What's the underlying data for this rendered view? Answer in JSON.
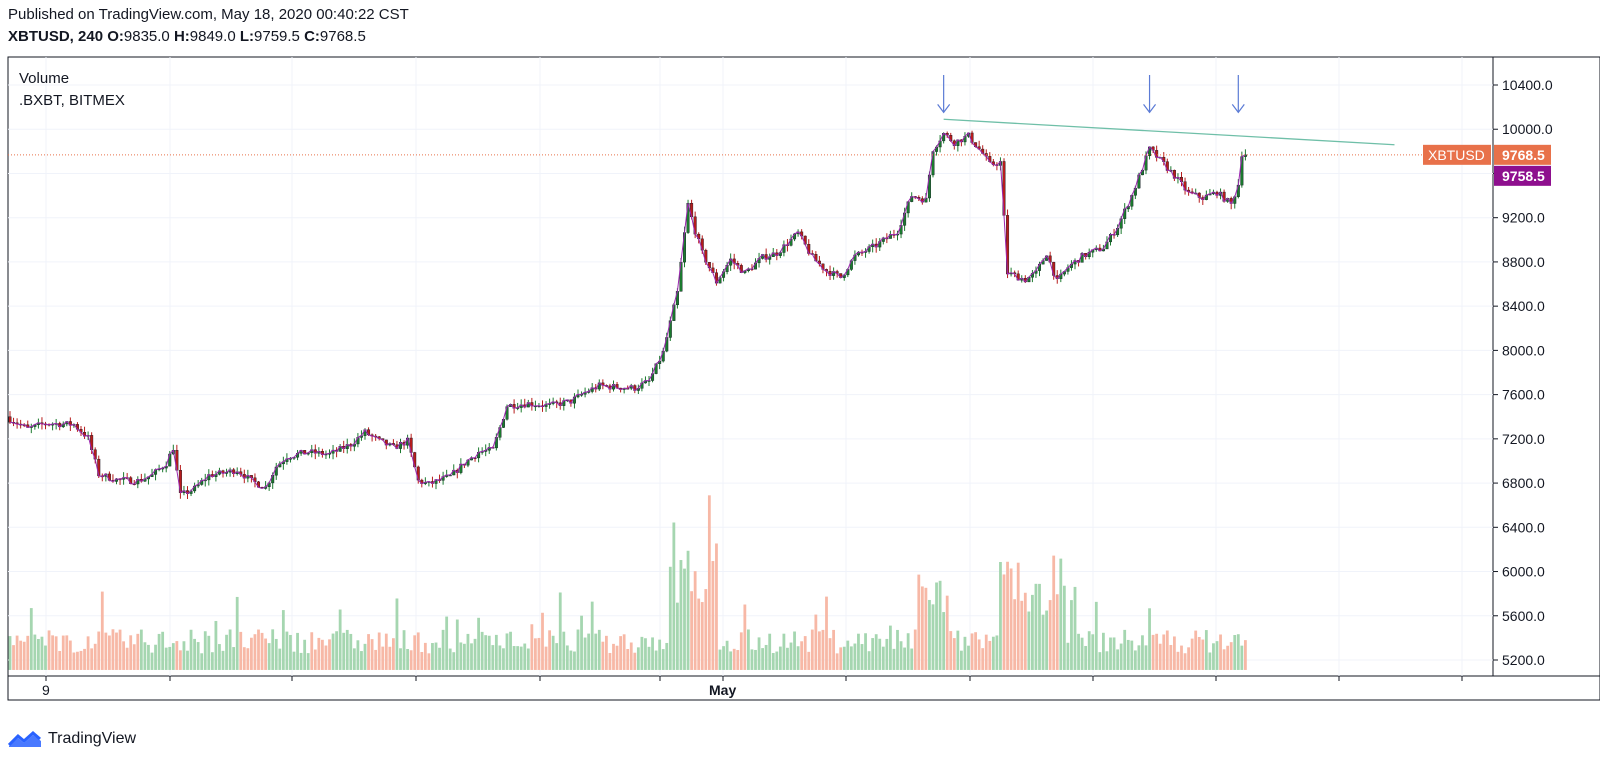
{
  "header": {
    "published": "Published on TradingView.com, May 18, 2020 00:40:22 CST",
    "symbol": "XBTUSD, 240",
    "o_label": "O:",
    "o_value": "9835.0",
    "h_label": "H:",
    "h_value": "9849.0",
    "l_label": "L:",
    "l_value": "9759.5",
    "c_label": "C:",
    "c_value": "9768.5"
  },
  "legend": {
    "line1": "Volume",
    "line2": ".BXBT, BITMEX"
  },
  "price_axis": {
    "ticks": [
      "10400.0",
      "10000.0",
      "9600.0",
      "9200.0",
      "8800.0",
      "8400.0",
      "8000.0",
      "7600.0",
      "7200.0",
      "6800.0",
      "6400.0",
      "6000.0",
      "5600.0",
      "5200.0"
    ]
  },
  "time_axis": {
    "labels": [
      "9",
      "May"
    ]
  },
  "badges": {
    "symbol_label": "XBTUSD",
    "last_price": "9768.5",
    "index_price": "9758.5"
  },
  "colors": {
    "up": "#26a69a",
    "up_body": "#1b7a2e",
    "down": "#b71c1c",
    "line": "#9c27b0",
    "vol_up": "#a5d6b0",
    "vol_down": "#f7b8a6",
    "trend": "#6fbfa8",
    "arrow": "#5b7bd5",
    "badge_orange": "#e8714a",
    "badge_purple": "#8e0f8e"
  },
  "chart_data": {
    "type": "candlestick",
    "title": "XBTUSD, 240",
    "ylim": [
      5100,
      10650
    ],
    "anchors": [
      [
        0,
        7380
      ],
      [
        5,
        7290
      ],
      [
        10,
        7340
      ],
      [
        18,
        7330
      ],
      [
        22,
        7210
      ],
      [
        25,
        6880
      ],
      [
        30,
        6830
      ],
      [
        36,
        6820
      ],
      [
        40,
        6870
      ],
      [
        44,
        6980
      ],
      [
        46,
        7120
      ],
      [
        48,
        6690
      ],
      [
        52,
        6750
      ],
      [
        56,
        6870
      ],
      [
        60,
        6890
      ],
      [
        64,
        6920
      ],
      [
        68,
        6820
      ],
      [
        72,
        6760
      ],
      [
        75,
        6950
      ],
      [
        78,
        7040
      ],
      [
        84,
        7080
      ],
      [
        90,
        7060
      ],
      [
        96,
        7150
      ],
      [
        100,
        7260
      ],
      [
        104,
        7180
      ],
      [
        108,
        7120
      ],
      [
        112,
        7180
      ],
      [
        115,
        6820
      ],
      [
        118,
        6790
      ],
      [
        124,
        6860
      ],
      [
        128,
        6980
      ],
      [
        132,
        7080
      ],
      [
        136,
        7100
      ],
      [
        140,
        7500
      ],
      [
        146,
        7520
      ],
      [
        152,
        7500
      ],
      [
        158,
        7540
      ],
      [
        162,
        7620
      ],
      [
        166,
        7680
      ],
      [
        170,
        7670
      ],
      [
        176,
        7660
      ],
      [
        180,
        7720
      ],
      [
        184,
        7980
      ],
      [
        188,
        8520
      ],
      [
        191,
        9320
      ],
      [
        193,
        9080
      ],
      [
        195,
        8880
      ],
      [
        199,
        8620
      ],
      [
        203,
        8820
      ],
      [
        207,
        8700
      ],
      [
        212,
        8840
      ],
      [
        216,
        8880
      ],
      [
        222,
        9060
      ],
      [
        226,
        8840
      ],
      [
        230,
        8720
      ],
      [
        234,
        8660
      ],
      [
        238,
        8850
      ],
      [
        244,
        8950
      ],
      [
        250,
        9080
      ],
      [
        254,
        9400
      ],
      [
        258,
        9360
      ],
      [
        260,
        9820
      ],
      [
        263,
        9960
      ],
      [
        266,
        9880
      ],
      [
        270,
        9940
      ],
      [
        274,
        9780
      ],
      [
        276,
        9680
      ],
      [
        279,
        9700
      ],
      [
        281,
        8700
      ],
      [
        286,
        8640
      ],
      [
        289,
        8700
      ],
      [
        292,
        8880
      ],
      [
        295,
        8620
      ],
      [
        298,
        8750
      ],
      [
        302,
        8850
      ],
      [
        308,
        8930
      ],
      [
        312,
        9120
      ],
      [
        316,
        9400
      ],
      [
        319,
        9650
      ],
      [
        321,
        9820
      ],
      [
        324,
        9720
      ],
      [
        328,
        9580
      ],
      [
        332,
        9420
      ],
      [
        336,
        9380
      ],
      [
        340,
        9430
      ],
      [
        344,
        9320
      ],
      [
        346,
        9500
      ],
      [
        347,
        9780
      ],
      [
        348,
        9768.5
      ]
    ],
    "last_price": 9768.5,
    "index_price": 9758.5,
    "trendline": [
      [
        263,
        10090
      ],
      [
        390,
        9860
      ]
    ],
    "volume_ylim": [
      5100,
      10650
    ]
  }
}
